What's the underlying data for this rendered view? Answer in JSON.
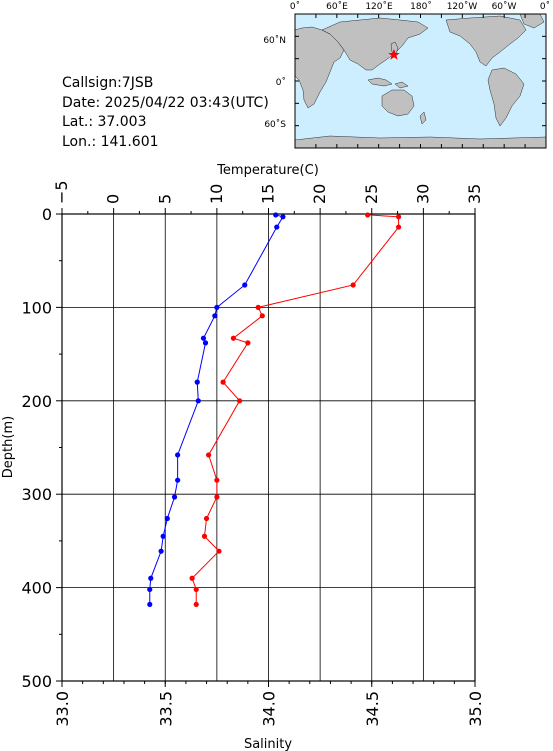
{
  "info": {
    "callsign": "Callsign:7JSB",
    "date": "Date:  2025/04/22 03:43(UTC)",
    "lat": "Lat.:  37.003",
    "lon": "Lon.:  141.601"
  },
  "map": {
    "top_labels": [
      "0˚",
      "60˚E",
      "120˚E",
      "180˚",
      "120˚W",
      "60˚W",
      "0˚"
    ],
    "left_labels": [
      "60˚N",
      "0˚",
      "60˚S"
    ],
    "ocean_color": "#cceeff",
    "land_color": "#c0c0c0",
    "marker_color": "#ff0000",
    "marker": "red-star"
  },
  "chart_data": {
    "type": "scatter",
    "ylabel": "Depth(m)",
    "yticks": [
      "0",
      "100",
      "200",
      "300",
      "400",
      "500"
    ],
    "ylim": [
      0,
      500
    ],
    "y_inverted": true,
    "top_axis": {
      "label": "Temperature(C)",
      "ticks": [
        "−5",
        "0",
        "5",
        "10",
        "15",
        "20",
        "25",
        "30",
        "35"
      ],
      "lim": [
        -5,
        35
      ]
    },
    "bottom_axis": {
      "label": "Salinity",
      "ticks": [
        "33.0",
        "33.5",
        "34.0",
        "34.5",
        "35.0"
      ],
      "lim": [
        33.0,
        35.0
      ]
    },
    "grid": true,
    "series": [
      {
        "axis": "temperature",
        "color": "#0000ff",
        "points": [
          {
            "x": 15.7,
            "y": 1
          },
          {
            "x": 16.4,
            "y": 3
          },
          {
            "x": 15.8,
            "y": 14
          },
          {
            "x": 12.7,
            "y": 76
          },
          {
            "x": 10.0,
            "y": 100
          },
          {
            "x": 9.8,
            "y": 109
          },
          {
            "x": 8.7,
            "y": 133
          },
          {
            "x": 8.9,
            "y": 138
          },
          {
            "x": 8.1,
            "y": 180
          },
          {
            "x": 8.2,
            "y": 200
          },
          {
            "x": 6.2,
            "y": 258
          },
          {
            "x": 6.2,
            "y": 285
          },
          {
            "x": 5.9,
            "y": 303
          },
          {
            "x": 5.2,
            "y": 326
          },
          {
            "x": 4.8,
            "y": 345
          },
          {
            "x": 4.6,
            "y": 361
          },
          {
            "x": 3.6,
            "y": 390
          },
          {
            "x": 3.5,
            "y": 402
          },
          {
            "x": 3.5,
            "y": 418
          }
        ]
      },
      {
        "axis": "salinity",
        "color": "#ff0000",
        "points": [
          {
            "x": 34.48,
            "y": 1
          },
          {
            "x": 34.63,
            "y": 3
          },
          {
            "x": 34.63,
            "y": 14
          },
          {
            "x": 34.41,
            "y": 76
          },
          {
            "x": 33.95,
            "y": 100
          },
          {
            "x": 33.97,
            "y": 109
          },
          {
            "x": 33.83,
            "y": 133
          },
          {
            "x": 33.9,
            "y": 138
          },
          {
            "x": 33.78,
            "y": 180
          },
          {
            "x": 33.86,
            "y": 200
          },
          {
            "x": 33.71,
            "y": 258
          },
          {
            "x": 33.75,
            "y": 285
          },
          {
            "x": 33.75,
            "y": 303
          },
          {
            "x": 33.7,
            "y": 326
          },
          {
            "x": 33.69,
            "y": 345
          },
          {
            "x": 33.76,
            "y": 361
          },
          {
            "x": 33.63,
            "y": 390
          },
          {
            "x": 33.65,
            "y": 402
          },
          {
            "x": 33.65,
            "y": 418
          }
        ]
      }
    ]
  }
}
